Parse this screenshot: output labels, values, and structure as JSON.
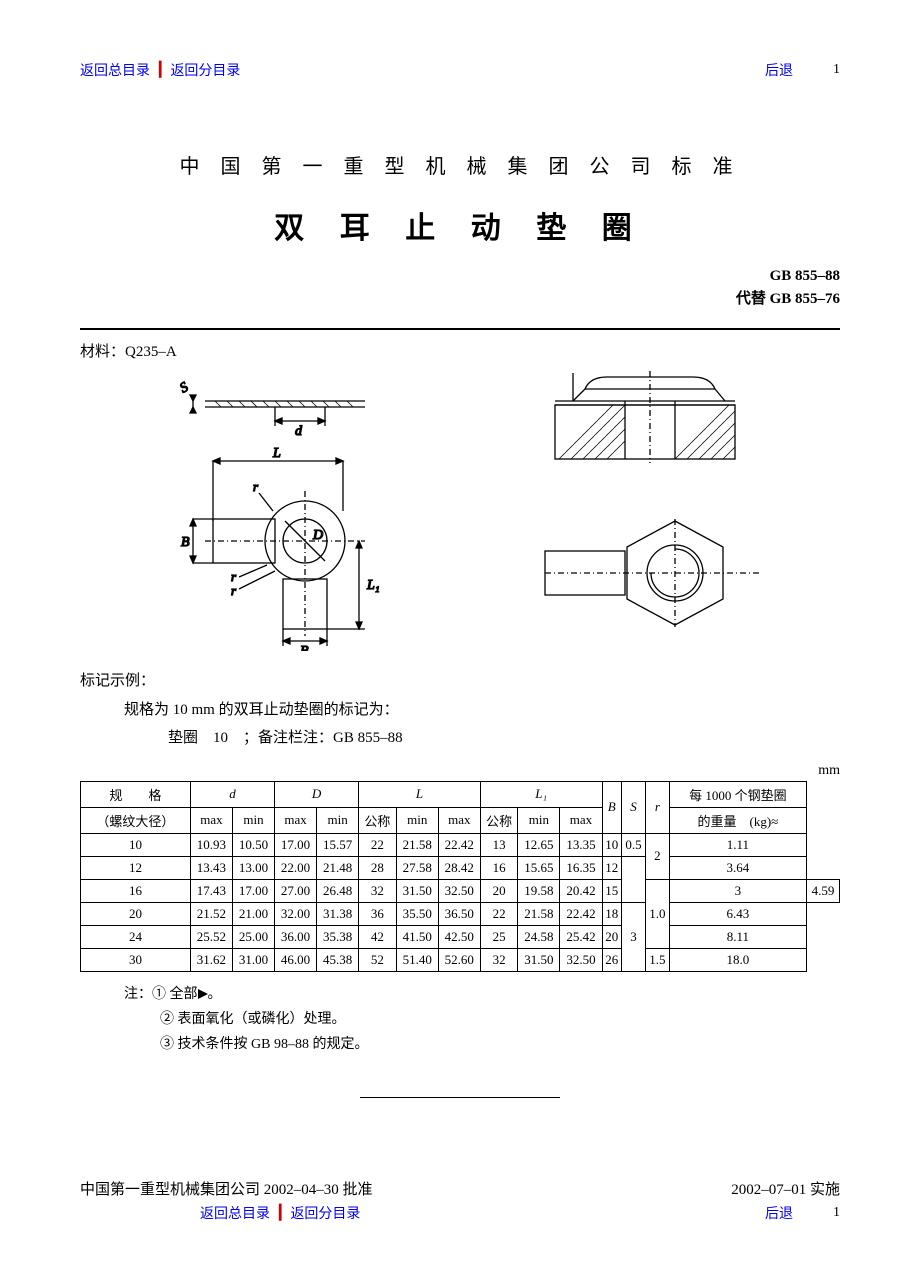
{
  "nav": {
    "back_main": "返回总目录",
    "back_sub": "返回分目录",
    "back": "后退",
    "page": "1"
  },
  "header": {
    "org": "中 国 第 一 重 型 机 械 集 团 公 司 标 准",
    "title": "双 耳 止 动 垫 圈",
    "std1": "GB 855–88",
    "std2": "代替 GB 855–76"
  },
  "material": "材料：Q235–A",
  "marking": {
    "t": "标记示例：",
    "l2": "规格为 10 mm 的双耳止动垫圈的标记为：",
    "l3": "垫圈　10　；备注栏注：GB 855–88"
  },
  "unit": "mm",
  "table": {
    "head": {
      "spec1": "规　　格",
      "spec2": "（螺纹大径）",
      "d": "d",
      "D": "D",
      "L": "L",
      "L1": "L₁",
      "B": "B",
      "S": "S",
      "r": "r",
      "weight1": "每 1000 个钢垫圈",
      "weight2": "的重量　(kg)≈",
      "max": "max",
      "min": "min",
      "nom": "公称"
    },
    "rows": [
      {
        "spec": "10",
        "d_max": "10.93",
        "d_min": "10.50",
        "D_max": "17.00",
        "D_min": "15.57",
        "L_nom": "22",
        "L_min": "21.58",
        "L_max": "22.42",
        "L1_nom": "13",
        "L1_min": "12.65",
        "L1_max": "13.35",
        "B_": "10",
        "S": "0.5",
        "r": "",
        "w": "1.11"
      },
      {
        "spec": "12",
        "d_max": "13.43",
        "d_min": "13.00",
        "D_max": "22.00",
        "D_min": "21.48",
        "L_nom": "28",
        "L_min": "27.58",
        "L_max": "28.42",
        "L1_nom": "16",
        "L1_min": "15.65",
        "L1_max": "16.35",
        "B_": "12",
        "S": "",
        "r": "2",
        "w": "3.64"
      },
      {
        "spec": "16",
        "d_max": "17.43",
        "d_min": "17.00",
        "D_max": "27.00",
        "D_min": "26.48",
        "L_nom": "32",
        "L_min": "31.50",
        "L_max": "32.50",
        "L1_nom": "20",
        "L1_min": "19.58",
        "L1_max": "20.42",
        "B_": "15",
        "S": "1.0",
        "r": "",
        "w": "4.59"
      },
      {
        "spec": "20",
        "d_max": "21.52",
        "d_min": "21.00",
        "D_max": "32.00",
        "D_min": "31.38",
        "L_nom": "36",
        "L_min": "35.50",
        "L_max": "36.50",
        "L1_nom": "22",
        "L1_min": "21.58",
        "L1_max": "22.42",
        "B_": "18",
        "S": "",
        "r": "",
        "w": "6.43"
      },
      {
        "spec": "24",
        "d_max": "25.52",
        "d_min": "25.00",
        "D_max": "36.00",
        "D_min": "35.38",
        "L_nom": "42",
        "L_min": "41.50",
        "L_max": "42.50",
        "L1_nom": "25",
        "L1_min": "24.58",
        "L1_max": "25.42",
        "B_": "20",
        "S": "",
        "r": "3",
        "w": "8.11"
      },
      {
        "spec": "30",
        "d_max": "31.62",
        "d_min": "31.00",
        "D_max": "46.00",
        "D_min": "45.38",
        "L_nom": "52",
        "L_min": "51.40",
        "L_max": "52.60",
        "L1_nom": "32",
        "L1_min": "31.50",
        "L1_max": "32.50",
        "B_": "26",
        "S": "1.5",
        "r": "",
        "w": "18.0"
      }
    ],
    "merge": {
      "S": [
        [
          0,
          1
        ],
        [
          1,
          2
        ],
        [
          2,
          3
        ],
        [
          5,
          1
        ]
      ],
      "r": [
        [
          0,
          2
        ],
        [
          2,
          1
        ],
        [
          3,
          3
        ]
      ]
    }
  },
  "notes": {
    "pre": "注：",
    "n1a": "① 全部",
    "n1b": "。",
    "n2": "② 表面氧化（或磷化）处理。",
    "n3": "③ 技术条件按 GB 98–88 的规定。"
  },
  "footer": {
    "approve": "中国第一重型机械集团公司 2002–04–30 批准",
    "impl": "2002–07–01 实施"
  },
  "fig": {
    "labels": {
      "S": "S",
      "d": "d",
      "L": "L",
      "r": "r",
      "B": "B",
      "D": "D",
      "L1": "L₁"
    }
  }
}
